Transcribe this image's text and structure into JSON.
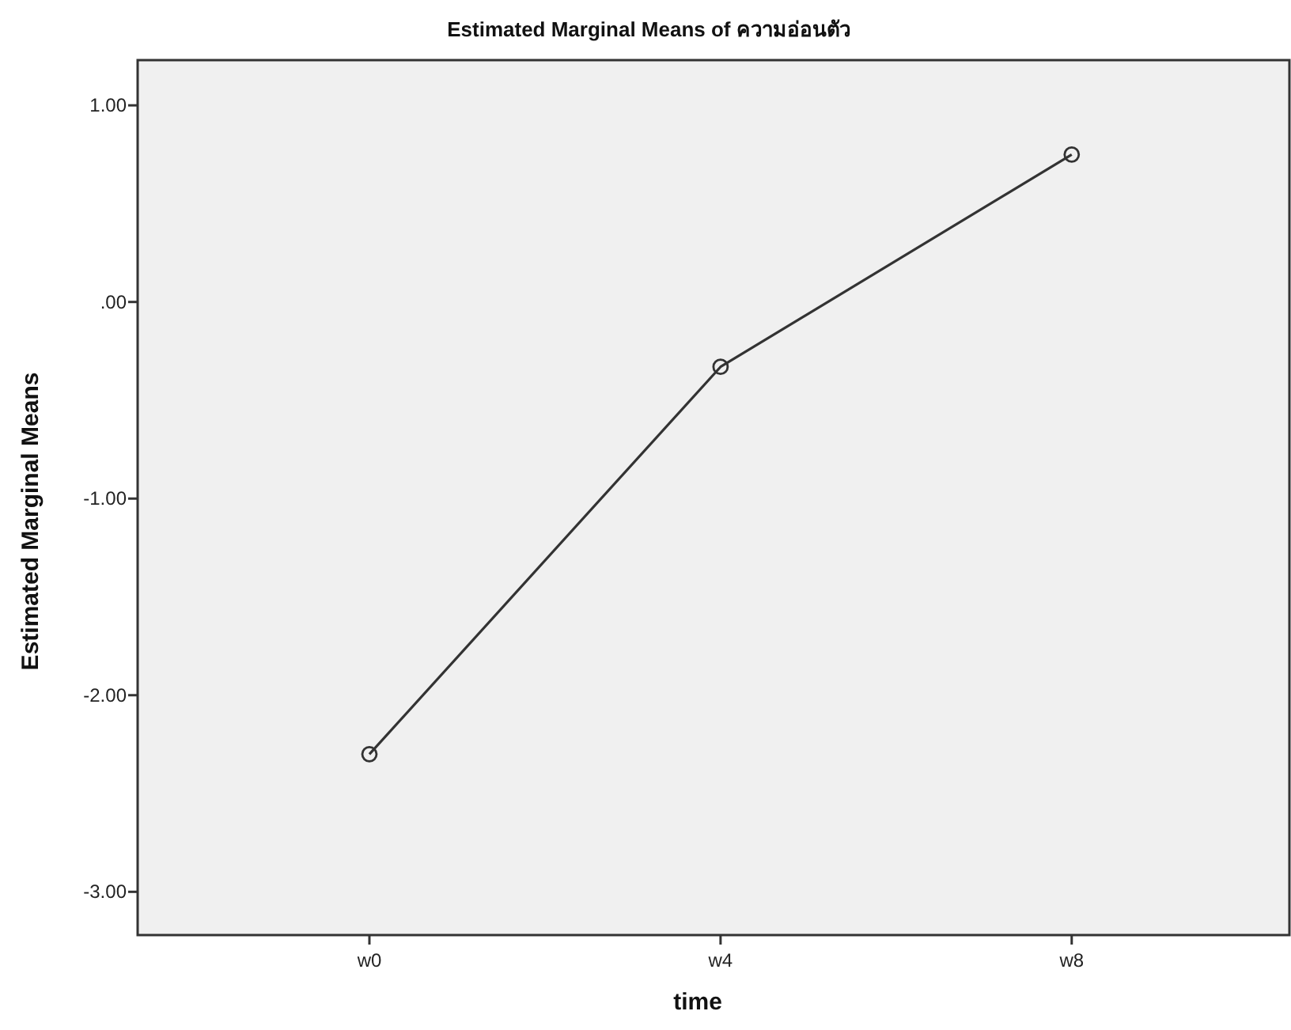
{
  "chart_data": {
    "type": "line",
    "title": "Estimated Marginal Means of ความอ่อนตัว",
    "xlabel": "time",
    "ylabel": "Estimated Marginal Means",
    "categories": [
      "w0",
      "w4",
      "w8"
    ],
    "series": [
      {
        "color": "#333333",
        "values": [
          -2.3,
          -0.33,
          0.75
        ]
      }
    ],
    "ylim": [
      -3.22,
      1.23
    ],
    "yticks": [
      {
        "value": 1,
        "label": "1.00"
      },
      {
        "value": 0,
        "label": ".00"
      },
      {
        "value": -1,
        "label": "-1.00"
      },
      {
        "value": -2,
        "label": "-2.00"
      },
      {
        "value": -3,
        "label": "-3.00"
      }
    ],
    "grid": false,
    "marker": "circle",
    "line_style": "solid"
  }
}
